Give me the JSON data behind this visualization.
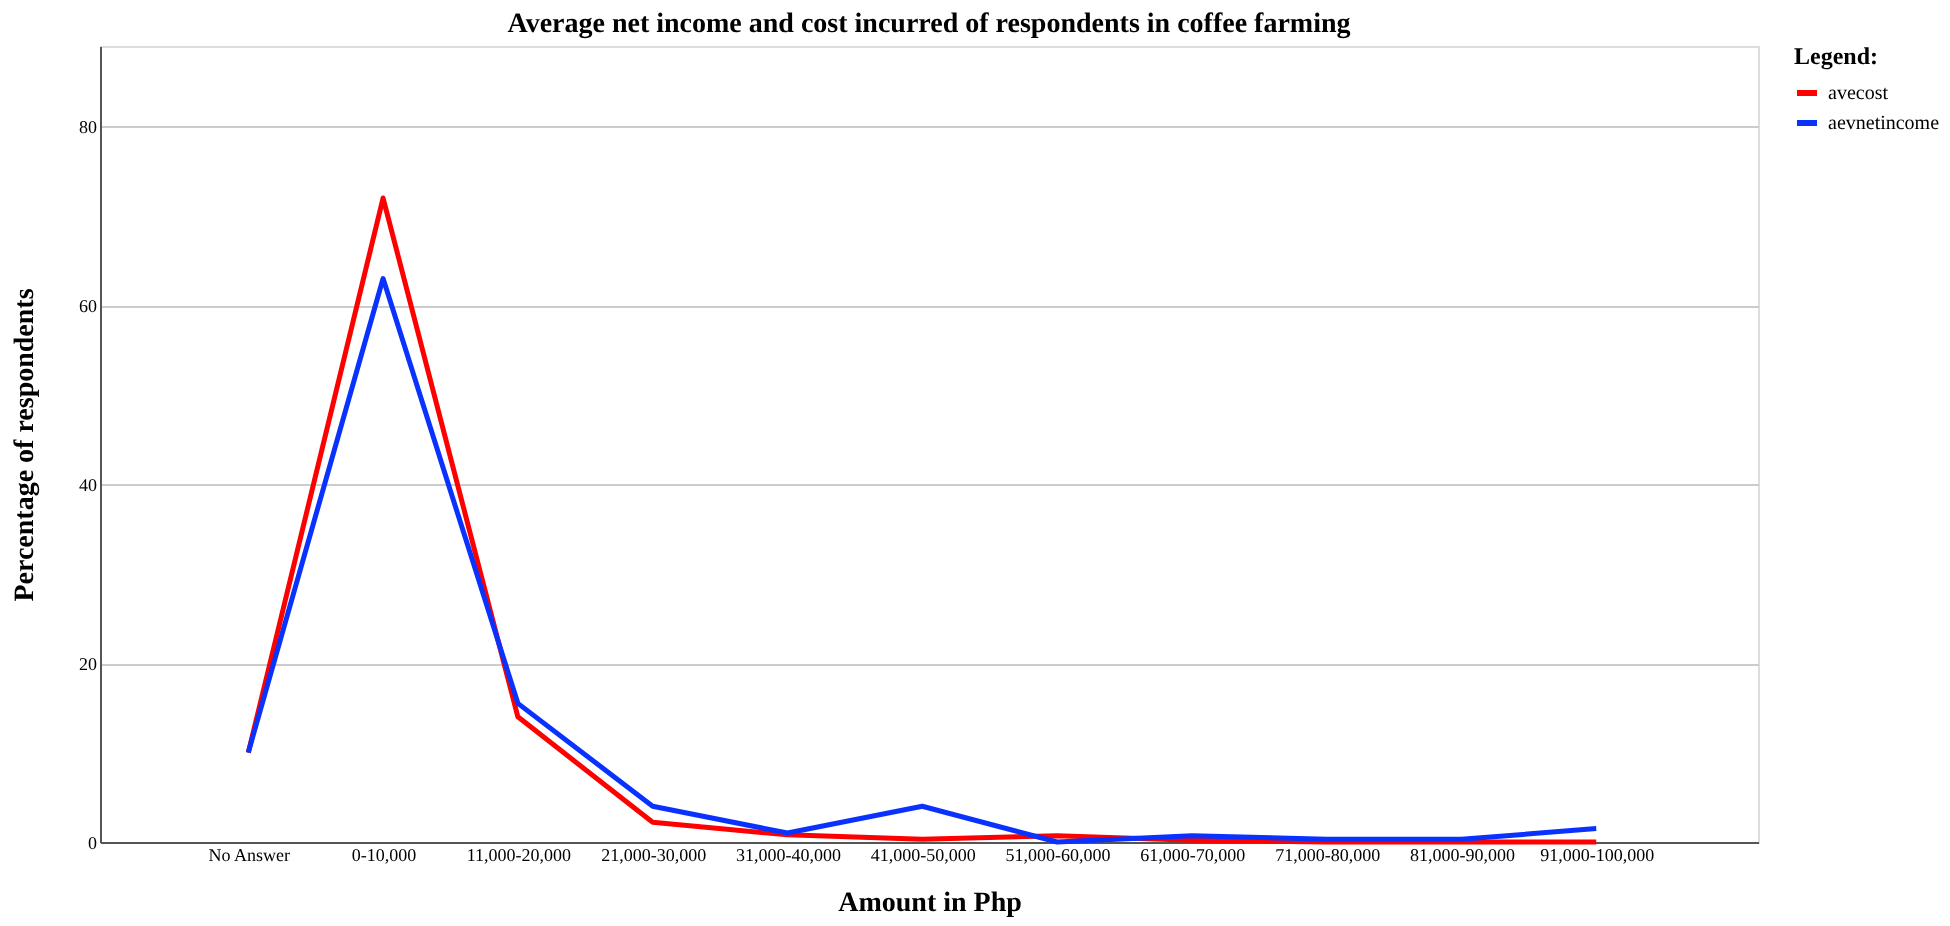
{
  "chart_data": {
    "type": "line",
    "title": "Average net income and cost incurred of respondents in coffee farming",
    "xlabel": "Amount in Php",
    "ylabel": "Percentage of respondents",
    "legend_title": "Legend:",
    "categories": [
      "No Answer",
      "0-10,000",
      "11,000-20,000",
      "21,000-30,000",
      "31,000-40,000",
      "41,000-50,000",
      "51,000-60,000",
      "61,000-70,000",
      "71,000-80,000",
      "81,000-90,000",
      "91,000-100,000"
    ],
    "series": [
      {
        "name": "avecost",
        "color": "#ff0000",
        "values": [
          10,
          72,
          14,
          2.2,
          0.8,
          0.3,
          0.7,
          0.2,
          0,
          0,
          0
        ]
      },
      {
        "name": "aevnetincome",
        "color": "#0a32ff",
        "values": [
          10,
          63,
          15.5,
          4,
          1,
          4,
          0,
          0.7,
          0.3,
          0.3,
          1.5
        ]
      }
    ],
    "ylim": [
      0,
      89
    ],
    "yticks": [
      0,
      20,
      40,
      60,
      80
    ],
    "grid": "y",
    "legend": "top right",
    "marker": "none",
    "line_style": "solid"
  }
}
